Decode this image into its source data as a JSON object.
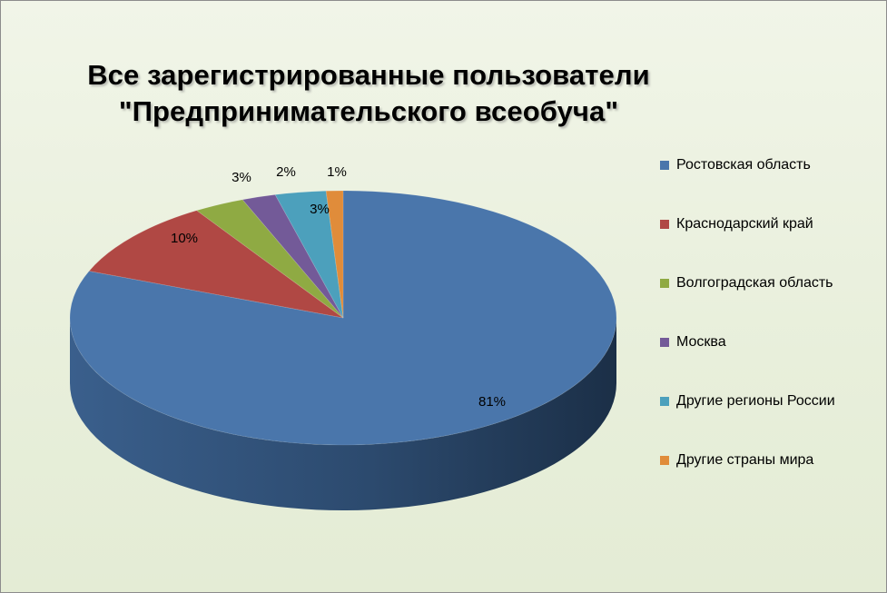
{
  "chart_data": {
    "type": "pie",
    "title": [
      "Все зарегистрированные пользователи",
      "\"Предпринимательского всеобуча\""
    ],
    "categories": [
      "Ростовская область",
      "Краснодарский край",
      "Волгоградская область",
      "Москва",
      "Другие регионы  России",
      "Другие страны мира"
    ],
    "values": [
      81,
      10,
      3,
      2,
      3,
      1
    ],
    "labels": [
      "81%",
      "10%",
      "3%",
      "2%",
      "3%",
      "1%"
    ],
    "colors": [
      "#4a76ab",
      "#b04844",
      "#8faa43",
      "#735a98",
      "#4ca0bc",
      "#e08c3a"
    ],
    "legend_position": "right",
    "style": "3d"
  }
}
